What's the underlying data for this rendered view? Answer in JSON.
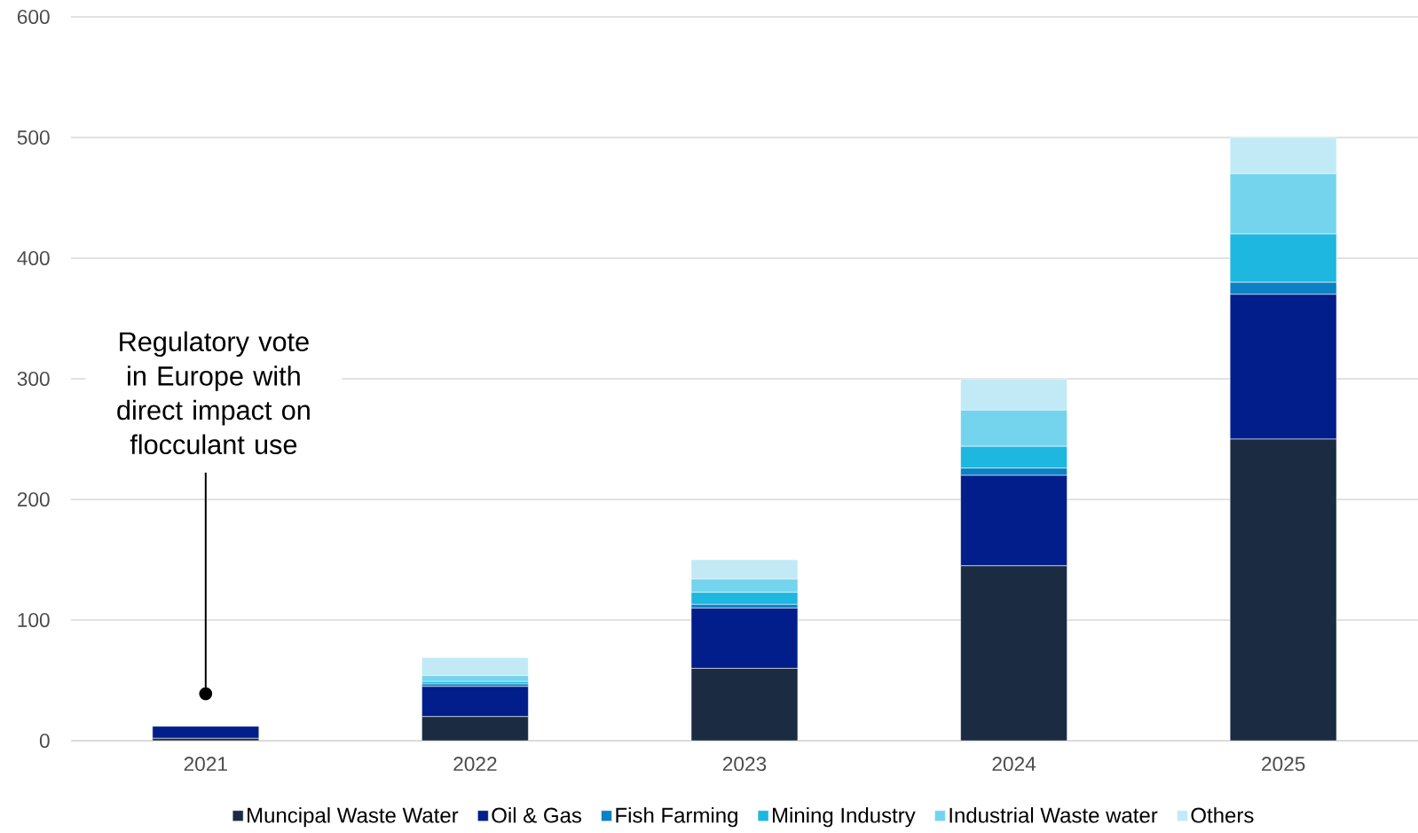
{
  "chart_data": {
    "type": "bar",
    "stacked": true,
    "categories": [
      "2021",
      "2022",
      "2023",
      "2024",
      "2025"
    ],
    "series": [
      {
        "name": "Muncipal Waste Water",
        "color": "#1a2b42",
        "values": [
          2,
          20,
          60,
          145,
          250
        ]
      },
      {
        "name": "Oil & Gas",
        "color": "#021e8a",
        "values": [
          10,
          25,
          50,
          75,
          120
        ]
      },
      {
        "name": "Fish Farming",
        "color": "#0a82c5",
        "values": [
          0,
          2,
          3,
          6,
          10
        ]
      },
      {
        "name": "Mining Industry",
        "color": "#1db7e0",
        "values": [
          0,
          2,
          10,
          18,
          40
        ]
      },
      {
        "name": "Industrial Waste water",
        "color": "#75d4ed",
        "values": [
          0,
          5,
          11,
          30,
          50
        ]
      },
      {
        "name": "Others",
        "color": "#c1eaf6",
        "values": [
          0,
          15,
          16,
          26,
          30
        ]
      }
    ],
    "ylim": [
      0,
      600
    ],
    "yticks": [
      0,
      100,
      200,
      300,
      400,
      500,
      600
    ],
    "grid": "y",
    "legend": "bottom",
    "annotations": [
      {
        "text": "Regulatory vote in Europe with direct impact on flocculant use",
        "x": "2021",
        "y": 39
      }
    ]
  }
}
